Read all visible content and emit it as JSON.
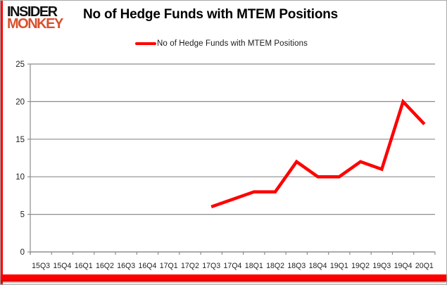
{
  "brand": {
    "line1": "INSIDER",
    "line2": "MONKEY",
    "line2_color": "#d9502c"
  },
  "title": "No of Hedge Funds with MTEM Positions",
  "legend": {
    "label": "No of Hedge Funds with MTEM Positions",
    "color": "#ff0000"
  },
  "chart_data": {
    "type": "line",
    "title": "No of Hedge Funds with MTEM Positions",
    "categories": [
      "15Q3",
      "15Q4",
      "16Q1",
      "16Q2",
      "16Q3",
      "16Q4",
      "17Q1",
      "17Q2",
      "17Q3",
      "17Q4",
      "18Q1",
      "18Q2",
      "18Q3",
      "18Q4",
      "19Q1",
      "19Q2",
      "19Q3",
      "19Q4",
      "20Q1"
    ],
    "series": [
      {
        "name": "No of Hedge Funds with MTEM Positions",
        "color": "#ff0000",
        "values": [
          null,
          null,
          null,
          null,
          null,
          null,
          null,
          null,
          6,
          7,
          8,
          8,
          12,
          10,
          10,
          12,
          11,
          20,
          17
        ]
      }
    ],
    "ylim": [
      0,
      25
    ],
    "yticks": [
      0,
      5,
      10,
      15,
      20,
      25
    ],
    "grid": "horizontal",
    "legend_position": "top-center"
  },
  "styles": {
    "grid_color": "#8c8c8c",
    "axis_color": "#8c8c8c",
    "tick_label_color": "#1f1f1f",
    "accent_color": "#ff0000"
  }
}
